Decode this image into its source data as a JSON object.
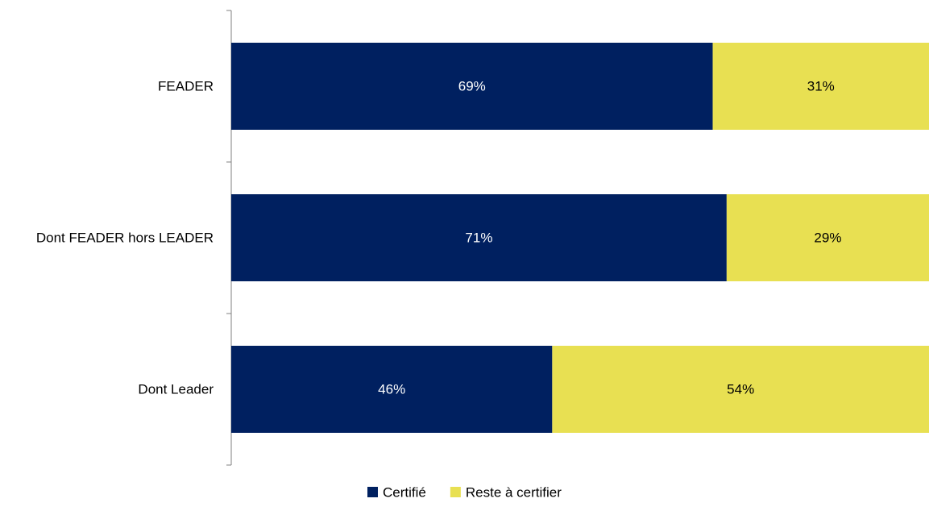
{
  "chart_data": {
    "type": "bar",
    "orientation": "horizontal",
    "stacked": true,
    "percent": true,
    "categories": [
      "FEADER",
      "Dont FEADER hors LEADER",
      "Dont Leader"
    ],
    "series": [
      {
        "name": "Certifié",
        "values": [
          69,
          71,
          46
        ],
        "labels": [
          "69%",
          "71%",
          "46%"
        ],
        "color": "#002060",
        "label_color": "#ffffff"
      },
      {
        "name": "Reste à certifier",
        "values": [
          31,
          29,
          54
        ],
        "labels": [
          "31%",
          "29%",
          "54%"
        ],
        "color": "#E8E052",
        "label_color": "#000000"
      }
    ],
    "xlim": [
      0,
      100
    ],
    "grid": false,
    "legend": "bottom"
  }
}
